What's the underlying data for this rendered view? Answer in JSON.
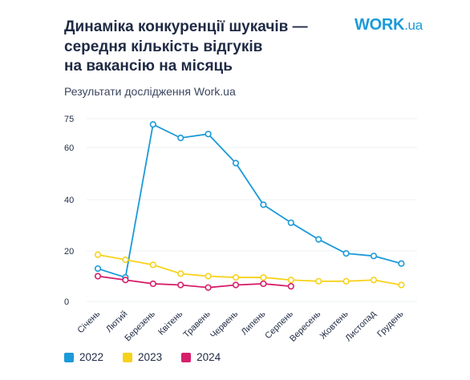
{
  "header": {
    "title_lines": [
      "Динаміка конкуренції шукачів —",
      "середня кількість відгуків",
      "на вакансію на місяць"
    ],
    "subtitle": "Результати дослідження Work.ua"
  },
  "logo": {
    "main": "WORK",
    "suffix": ".ua",
    "color": "#1b9ad8"
  },
  "chart_data": {
    "type": "line",
    "title": "Динаміка конкуренції шукачів — середня кількість відгуків на вакансію на місяць",
    "subtitle": "Результати дослідження Work.ua",
    "categories": [
      "Січень",
      "Лютий",
      "Березень",
      "Квітень",
      "Травень",
      "Червень",
      "Липень",
      "Серпень",
      "Вересень",
      "Жовтень",
      "Листопад",
      "Грудень"
    ],
    "y_ticks": [
      0,
      20,
      40,
      60,
      75
    ],
    "ylim": [
      0,
      78
    ],
    "grid": true,
    "legend_position": "bottom-left",
    "series": [
      {
        "name": "2022",
        "color": "#1b9ad8",
        "values": [
          13,
          9.5,
          72,
          65,
          67,
          54,
          38,
          31,
          24.5,
          19,
          18,
          15
        ]
      },
      {
        "name": "2023",
        "color": "#f7d21b",
        "values": [
          18.5,
          16.5,
          14.5,
          11,
          10,
          9.5,
          9.5,
          8.5,
          8,
          8,
          8.5,
          6.5
        ]
      },
      {
        "name": "2024",
        "color": "#d61f6a",
        "values": [
          10,
          8.5,
          7,
          6.5,
          5.5,
          6.5,
          7,
          6,
          null,
          null,
          null,
          null
        ]
      }
    ]
  }
}
